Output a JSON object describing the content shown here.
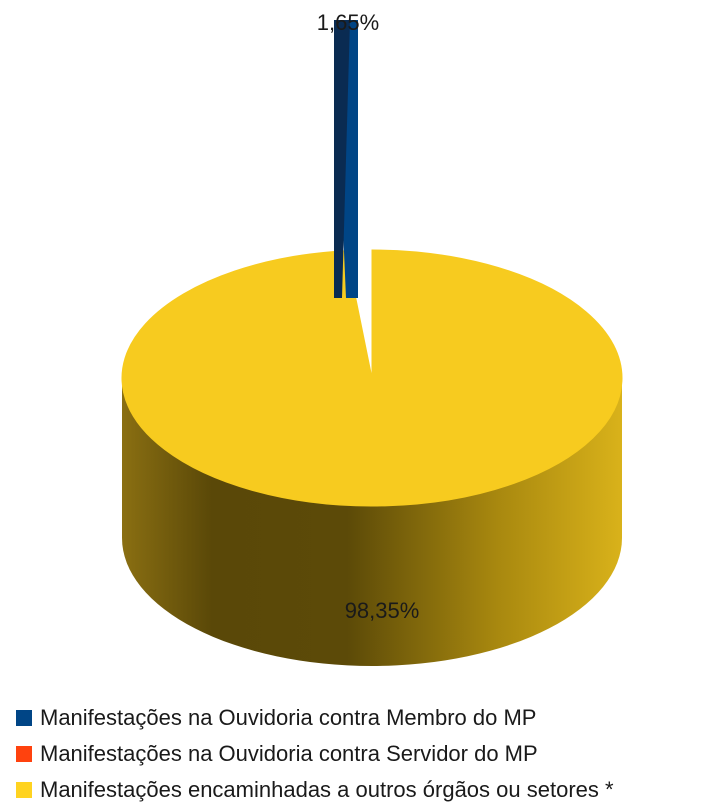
{
  "chart_data": {
    "type": "pie",
    "variant": "3d",
    "categories": [
      "Manifestações na Ouvidoria contra Membro do MP",
      "Manifestações na Ouvidoria contra Servidor do MP",
      "Manifestações encaminhadas a outros órgãos ou setores *"
    ],
    "values": [
      1.65,
      0,
      98.35
    ],
    "data_labels": [
      "1,65%",
      "",
      "98,35%"
    ],
    "colors": [
      "#004586",
      "#ff420e",
      "#ffd320"
    ],
    "legend_position": "bottom"
  }
}
